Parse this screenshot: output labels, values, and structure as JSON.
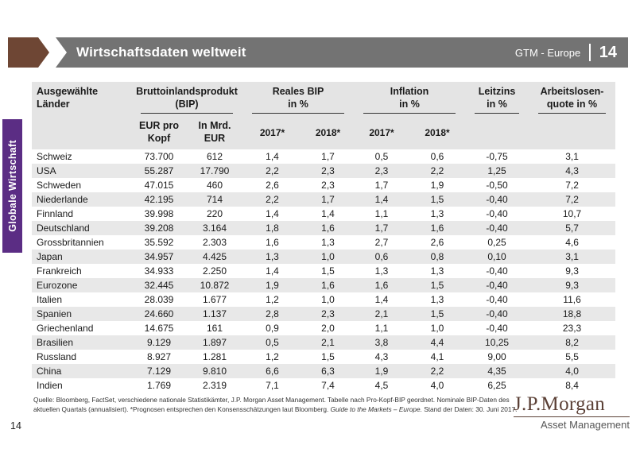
{
  "header": {
    "title": "Wirtschaftsdaten weltweit",
    "product_label": "GTM - Europe",
    "page_number": "14"
  },
  "sidebar": {
    "label": "Globale Wirtschaft"
  },
  "colors": {
    "side_tab_purple": "#5b2d84",
    "header_bar_gray": "#737373",
    "header_arrow_brown": "#6e4634",
    "table_header_bg": "#e4e4e4",
    "row_stripe_bg": "#e8e8e8",
    "logo_brown": "#5b4036"
  },
  "chart_data": {
    "type": "table",
    "column_groups": [
      {
        "lines": [
          "Ausgewählte",
          "Länder"
        ]
      },
      {
        "lines": [
          "Bruttoinlandsprodukt",
          "(BIP)"
        ]
      },
      {
        "lines": [
          "Reales BIP",
          "in %"
        ]
      },
      {
        "lines": [
          "Inflation",
          "in %"
        ]
      },
      {
        "lines": [
          "Leitzins",
          "in %"
        ]
      },
      {
        "lines": [
          "Arbeitslosen-",
          "quote in %"
        ]
      }
    ],
    "sub_headers": [
      {
        "lines": [
          "EUR pro",
          "Kopf"
        ]
      },
      {
        "lines": [
          "In Mrd.",
          "EUR"
        ]
      },
      {
        "label": "2017*"
      },
      {
        "label": "2018*"
      },
      {
        "label": "2017*"
      },
      {
        "label": "2018*"
      }
    ],
    "rows": [
      {
        "country": "Schweiz",
        "values": [
          "73.700",
          "612",
          "1,4",
          "1,7",
          "0,5",
          "0,6",
          "-0,75",
          "3,1"
        ]
      },
      {
        "country": "USA",
        "values": [
          "55.287",
          "17.790",
          "2,2",
          "2,3",
          "2,3",
          "2,2",
          "1,25",
          "4,3"
        ]
      },
      {
        "country": "Schweden",
        "values": [
          "47.015",
          "460",
          "2,6",
          "2,3",
          "1,7",
          "1,9",
          "-0,50",
          "7,2"
        ]
      },
      {
        "country": "Niederlande",
        "values": [
          "42.195",
          "714",
          "2,2",
          "1,7",
          "1,4",
          "1,5",
          "-0,40",
          "7,2"
        ]
      },
      {
        "country": "Finnland",
        "values": [
          "39.998",
          "220",
          "1,4",
          "1,4",
          "1,1",
          "1,3",
          "-0,40",
          "10,7"
        ]
      },
      {
        "country": "Deutschland",
        "values": [
          "39.208",
          "3.164",
          "1,8",
          "1,6",
          "1,7",
          "1,6",
          "-0,40",
          "5,7"
        ]
      },
      {
        "country": "Grossbritannien",
        "values": [
          "35.592",
          "2.303",
          "1,6",
          "1,3",
          "2,7",
          "2,6",
          "0,25",
          "4,6"
        ]
      },
      {
        "country": "Japan",
        "values": [
          "34.957",
          "4.425",
          "1,3",
          "1,0",
          "0,6",
          "0,8",
          "0,10",
          "3,1"
        ]
      },
      {
        "country": "Frankreich",
        "values": [
          "34.933",
          "2.250",
          "1,4",
          "1,5",
          "1,3",
          "1,3",
          "-0,40",
          "9,3"
        ]
      },
      {
        "country": "Eurozone",
        "values": [
          "32.445",
          "10.872",
          "1,9",
          "1,6",
          "1,6",
          "1,5",
          "-0,40",
          "9,3"
        ]
      },
      {
        "country": "Italien",
        "values": [
          "28.039",
          "1.677",
          "1,2",
          "1,0",
          "1,4",
          "1,3",
          "-0,40",
          "11,6"
        ]
      },
      {
        "country": "Spanien",
        "values": [
          "24.660",
          "1.137",
          "2,8",
          "2,3",
          "2,1",
          "1,5",
          "-0,40",
          "18,8"
        ]
      },
      {
        "country": "Griechenland",
        "values": [
          "14.675",
          "161",
          "0,9",
          "2,0",
          "1,1",
          "1,0",
          "-0,40",
          "23,3"
        ]
      },
      {
        "country": "Brasilien",
        "values": [
          "9.129",
          "1.897",
          "0,5",
          "2,1",
          "3,8",
          "4,4",
          "10,25",
          "8,2"
        ]
      },
      {
        "country": "Russland",
        "values": [
          "8.927",
          "1.281",
          "1,2",
          "1,5",
          "4,3",
          "4,1",
          "9,00",
          "5,5"
        ]
      },
      {
        "country": "China",
        "values": [
          "7.129",
          "9.810",
          "6,6",
          "6,3",
          "1,9",
          "2,2",
          "4,35",
          "4,0"
        ]
      },
      {
        "country": "Indien",
        "values": [
          "1.769",
          "2.319",
          "7,1",
          "7,4",
          "4,5",
          "4,0",
          "6,25",
          "8,4"
        ]
      }
    ]
  },
  "footer": {
    "line1": "Quelle: Bloomberg, FactSet, verschiedene nationale Statistikämter, J.P. Morgan Asset Management. Tabelle nach Pro-Kopf-BIP geordnet. Nominale BIP-Daten des",
    "line2_pre": "aktuellen Quartals (annualisiert). *Prognosen entsprechen den Konsensschätzungen laut Bloomberg. ",
    "line2_italic": "Guide to the Markets – Europe.",
    "line2_post": " Stand der Daten: 30. Juni 2017."
  },
  "logo": {
    "name": "J.P.Morgan",
    "subtitle": "Asset Management"
  },
  "page": {
    "slide_number": "14"
  }
}
